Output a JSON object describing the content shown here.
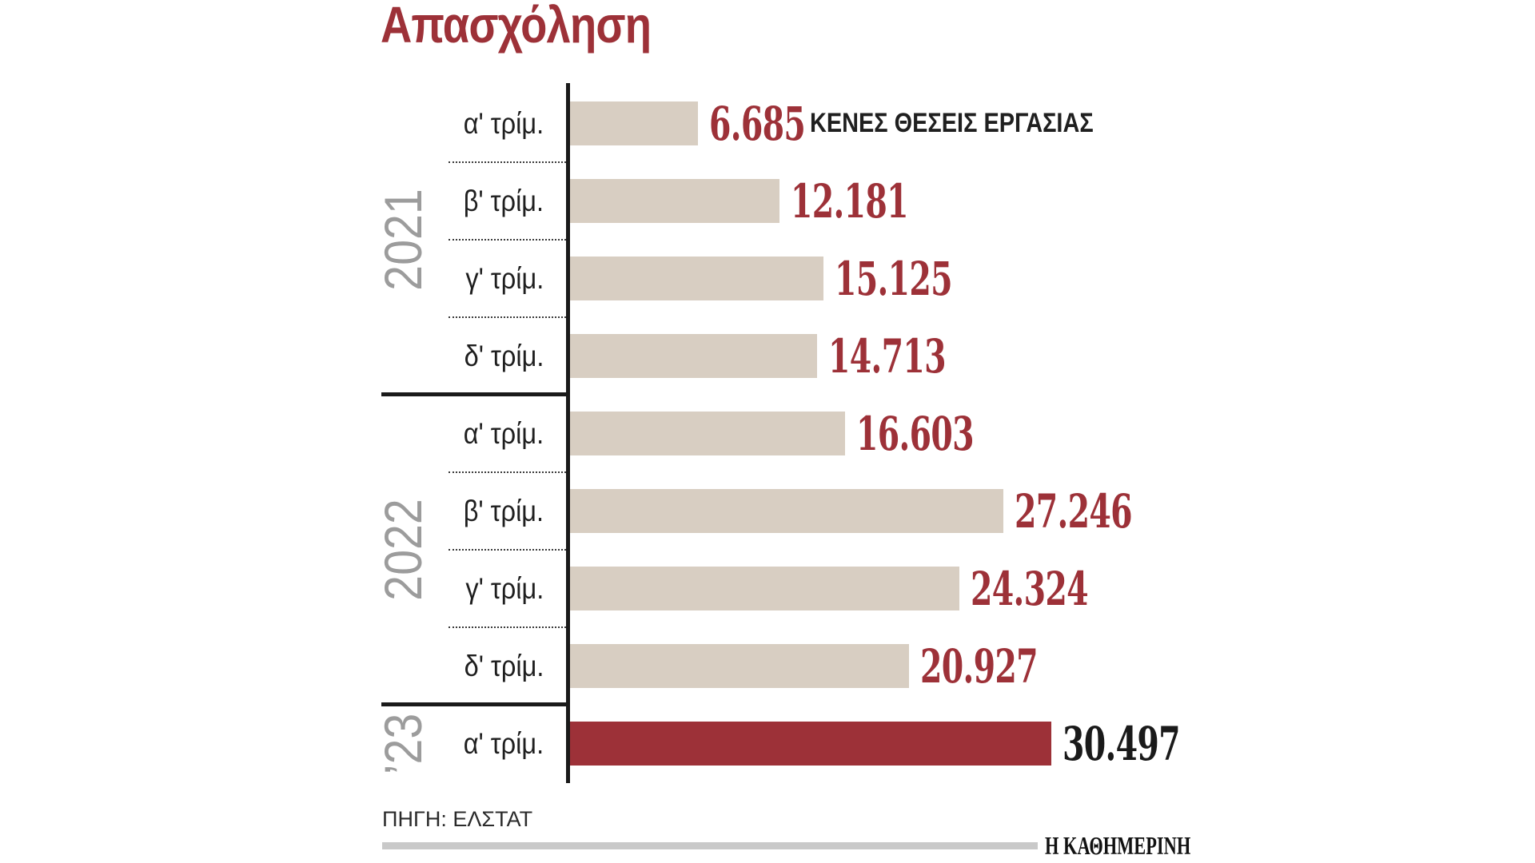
{
  "page": {
    "title": "Απασχόληση",
    "source": "ΠΗΓΗ: ΕΛΣΤΑΤ",
    "brand": "Η ΚΑΘΗΜΕΡΙΝΗ"
  },
  "chart_data": {
    "type": "bar",
    "orientation": "horizontal",
    "title": "Απασχόληση",
    "annotation": "ΚΕΝΕΣ ΘΕΣΕΙΣ ΕΡΓΑΣΙΑΣ",
    "annotation_row": 0,
    "xlabel": "",
    "ylabel": "",
    "x_range": [
      0,
      31000
    ],
    "grid": false,
    "legend_position": "none",
    "groups": [
      {
        "year": "2021",
        "rows": [
          {
            "quarter": "α' τρίμ.",
            "value": 6685,
            "label": "6.685"
          },
          {
            "quarter": "β' τρίμ.",
            "value": 12181,
            "label": "12.181"
          },
          {
            "quarter": "γ' τρίμ.",
            "value": 15125,
            "label": "15.125"
          },
          {
            "quarter": "δ' τρίμ.",
            "value": 14713,
            "label": "14.713"
          }
        ]
      },
      {
        "year": "2022",
        "rows": [
          {
            "quarter": "α' τρίμ.",
            "value": 16603,
            "label": "16.603"
          },
          {
            "quarter": "β' τρίμ.",
            "value": 27246,
            "label": "27.246"
          },
          {
            "quarter": "γ' τρίμ.",
            "value": 24324,
            "label": "24.324"
          },
          {
            "quarter": "δ' τρίμ.",
            "value": 20927,
            "label": "20.927"
          }
        ]
      },
      {
        "year": "’23",
        "rows": [
          {
            "quarter": "α' τρίμ.",
            "value": 30497,
            "label": "30.497",
            "highlight": true
          }
        ]
      }
    ],
    "colors": {
      "bar": "#d8cec2",
      "highlight_bar": "#9d3138",
      "value_text": "#9d3138",
      "highlight_value_text": "#1a1a1a",
      "title_text": "#9d3138",
      "quarter_text": "#1f1f1f",
      "year_text": "#9c9c9c",
      "annotation_text": "#1f1f1f",
      "footer_rule": "#c9c9c9"
    }
  }
}
